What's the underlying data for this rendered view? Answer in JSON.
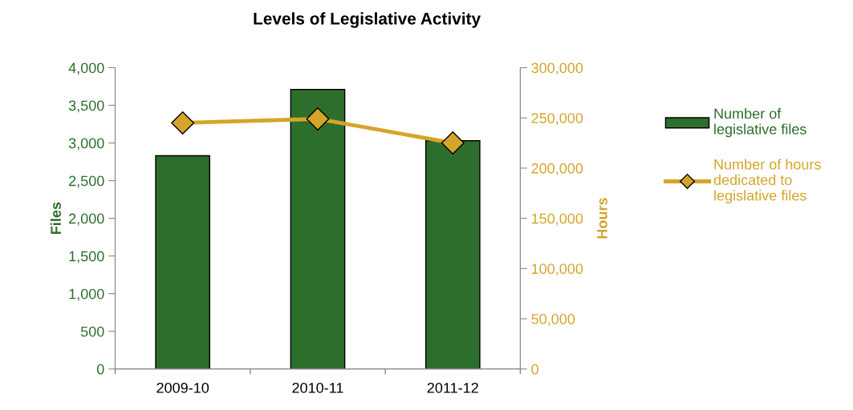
{
  "chart_data": {
    "type": "bar",
    "title": "Levels of Legislative Activity",
    "categories": [
      "2009-10",
      "2010-11",
      "2011-12"
    ],
    "series": [
      {
        "name": "Number of legislative files",
        "color": "#2d6e2d",
        "values": [
          2830,
          3710,
          3030
        ]
      },
      {
        "name": "Number of hours dedicated to legislative files",
        "color": "#d4a52a",
        "type": "line",
        "axis": "y2",
        "marker": "diamond",
        "values": [
          245000,
          249000,
          225000
        ]
      }
    ],
    "ylabel": "Files",
    "y2label": "Hours",
    "ylim": [
      0,
      4000
    ],
    "yticks": [
      {
        "value": 0,
        "label": "0"
      },
      {
        "value": 500,
        "label": "500"
      },
      {
        "value": 1000,
        "label": "1,000"
      },
      {
        "value": 1500,
        "label": "1,500"
      },
      {
        "value": 2000,
        "label": "2,000"
      },
      {
        "value": 2500,
        "label": "2,500"
      },
      {
        "value": 3000,
        "label": "3,000"
      },
      {
        "value": 3500,
        "label": "3,500"
      },
      {
        "value": 4000,
        "label": "4,000"
      }
    ],
    "y2lim": [
      0,
      300000
    ],
    "y2ticks": [
      {
        "value": 0,
        "label": "0"
      },
      {
        "value": 50000,
        "label": "50,000"
      },
      {
        "value": 100000,
        "label": "100,000"
      },
      {
        "value": 150000,
        "label": "150,000"
      },
      {
        "value": 200000,
        "label": "200,000"
      },
      {
        "value": 250000,
        "label": "250,000"
      },
      {
        "value": 300000,
        "label": "300,000"
      }
    ],
    "grid": false,
    "legend": "right"
  }
}
